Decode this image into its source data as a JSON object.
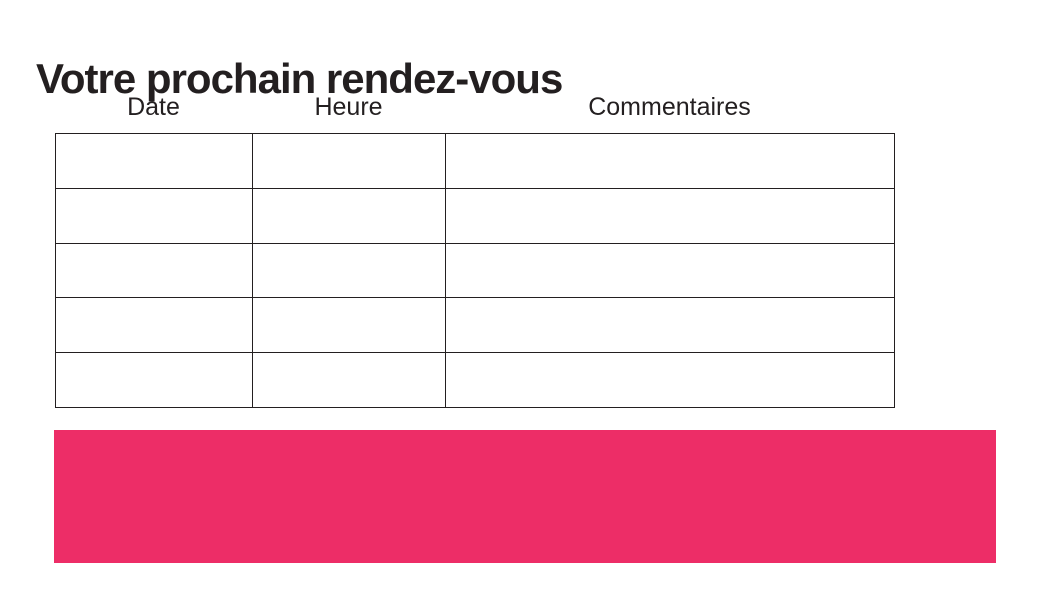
{
  "page": {
    "title": "Votre prochain rendez-vous",
    "background_color": "#ffffff",
    "text_color": "#231f20"
  },
  "table": {
    "columns": [
      {
        "label": "Date"
      },
      {
        "label": "Heure"
      },
      {
        "label": "Commentaires"
      }
    ],
    "rows": [
      [
        "",
        "",
        ""
      ],
      [
        "",
        "",
        ""
      ],
      [
        "",
        "",
        ""
      ],
      [
        "",
        "",
        ""
      ],
      [
        "",
        "",
        ""
      ]
    ],
    "border_color": "#231f20"
  },
  "highlight_bar": {
    "color": "#ED2D67",
    "label": ""
  }
}
